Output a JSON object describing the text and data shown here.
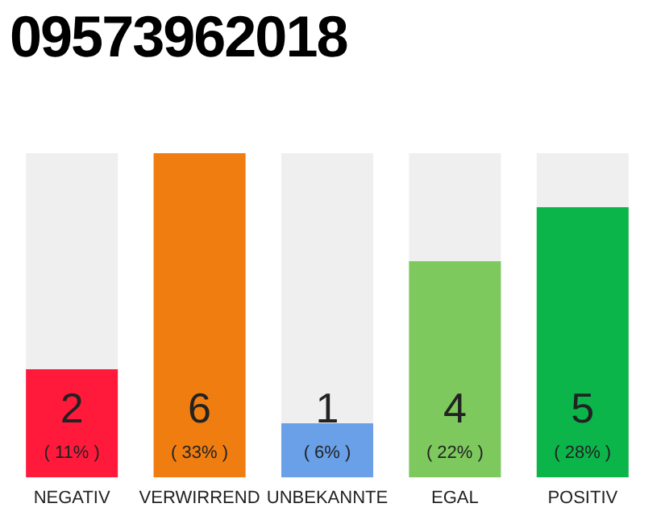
{
  "chart_data": {
    "type": "bar",
    "title": "09573962018",
    "categories": [
      "NEGATIV",
      "VERWIRREND",
      "UNBEKANNTE",
      "EGAL",
      "POSITIV"
    ],
    "values": [
      2,
      6,
      1,
      4,
      5
    ],
    "colors": [
      "#ff1a3c",
      "#f07d10",
      "#6aa0e8",
      "#7dc95e",
      "#0bb54a"
    ],
    "data_labels": true,
    "annotations": [
      "( 11% )",
      "( 33% )",
      "( 6% )",
      "( 22% )",
      "( 28% )"
    ],
    "tick_labels": "x"
  }
}
